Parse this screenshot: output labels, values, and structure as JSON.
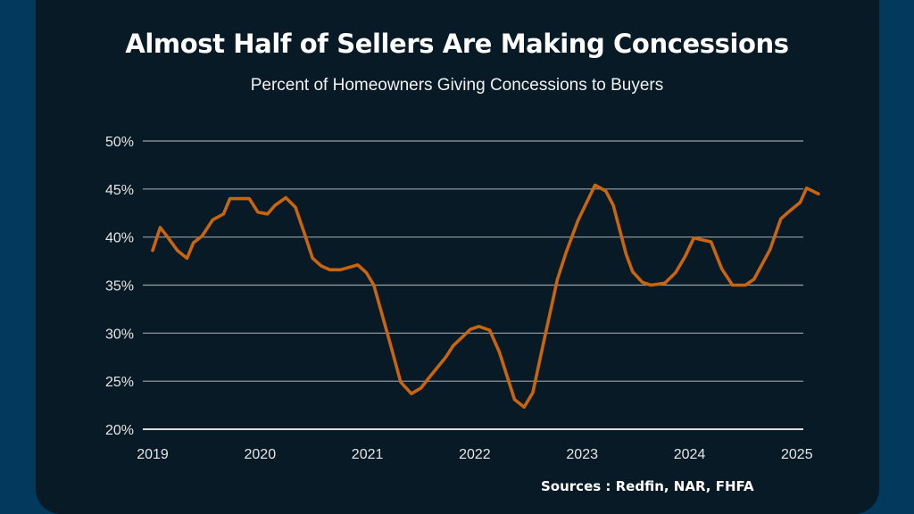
{
  "header": {
    "title": "Almost Half of Sellers Are Making Concessions",
    "subtitle": "Percent of Homeowners Giving Concessions to Buyers"
  },
  "footer": {
    "source": "Sources : Redfin, NAR, FHFA"
  },
  "colors": {
    "background": "#02395c",
    "card": "#071a26",
    "line": "#c8650d",
    "grid": "#9aa3a8",
    "text": "#ffffff"
  },
  "chart_data": {
    "type": "line",
    "title": "Almost Half of Sellers Are Making Concessions",
    "subtitle": "Percent of Homeowners Giving Concessions to Buyers",
    "xlabel": "",
    "ylabel": "",
    "xlim": [
      2019,
      2025.2
    ],
    "ylim": [
      20,
      50
    ],
    "yticks": [
      20,
      25,
      30,
      35,
      40,
      45,
      50
    ],
    "ytick_labels": [
      "20%",
      "25%",
      "30%",
      "35%",
      "40%",
      "45%",
      "50%"
    ],
    "xticks": [
      2019,
      2020,
      2021,
      2022,
      2023,
      2024,
      2025
    ],
    "xtick_labels": [
      "2019",
      "2020",
      "2021",
      "2022",
      "2023",
      "2024",
      "2025"
    ],
    "grid": true,
    "legend": "none",
    "series": [
      {
        "name": "Percent of homeowners giving concessions",
        "x": [
          2019.0,
          2019.07,
          2019.14,
          2019.23,
          2019.32,
          2019.38,
          2019.46,
          2019.56,
          2019.66,
          2019.72,
          2019.9,
          2019.98,
          2020.07,
          2020.14,
          2020.24,
          2020.33,
          2020.41,
          2020.49,
          2020.57,
          2020.65,
          2020.75,
          2020.91,
          2020.99,
          2021.06,
          2021.2,
          2021.31,
          2021.41,
          2021.5,
          2021.57,
          2021.57,
          2021.73,
          2021.8,
          2021.96,
          2022.04,
          2022.14,
          2022.23,
          2022.37,
          2022.46,
          2022.54,
          2022.65,
          2022.77,
          2022.85,
          2022.96,
          2023.12,
          2023.22,
          2023.29,
          2023.41,
          2023.47,
          2023.56,
          2023.64,
          2023.77,
          2023.87,
          2023.96,
          2024.04,
          2024.2,
          2024.3,
          2024.4,
          2024.52,
          2024.6,
          2024.75,
          2024.85,
          2024.92,
          2025.03,
          2025.09,
          2025.2
        ],
        "values": [
          38.6,
          41.0,
          40.0,
          38.6,
          37.8,
          39.4,
          40.1,
          41.8,
          42.4,
          44.0,
          44.0,
          42.6,
          42.4,
          43.3,
          44.1,
          43.1,
          40.5,
          37.8,
          37.0,
          36.6,
          36.6,
          37.1,
          36.3,
          35.0,
          29.4,
          24.9,
          23.7,
          24.3,
          25.3,
          25.3,
          27.5,
          28.7,
          30.4,
          30.7,
          30.3,
          28.0,
          23.1,
          22.3,
          23.8,
          29.5,
          35.6,
          38.4,
          41.7,
          45.4,
          44.8,
          43.3,
          38.2,
          36.4,
          35.3,
          35.0,
          35.2,
          36.3,
          38.0,
          39.9,
          39.5,
          36.7,
          35.0,
          35.0,
          35.6,
          38.7,
          41.9,
          42.6,
          43.6,
          45.1,
          44.5
        ]
      }
    ]
  }
}
